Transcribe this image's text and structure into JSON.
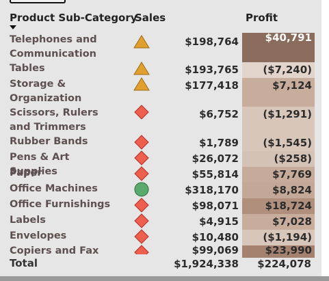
{
  "headers": {
    "category": "Product Sub-Category",
    "sales": "Sales",
    "profit": "Profit"
  },
  "rows": [
    {
      "category": "Telephones and Communication",
      "sales": "$198,764",
      "profit": "$40,791",
      "icon": "triangle-icon",
      "profit_color": "#8b6b5b"
    },
    {
      "category": "Tables",
      "sales": "$193,765",
      "profit": "($7,240)",
      "icon": "triangle-icon",
      "profit_color": "#e3d4cb"
    },
    {
      "category": "Storage & Organization",
      "sales": "$177,418",
      "profit": "$7,124",
      "icon": "triangle-icon",
      "profit_color": "#c8ad9d"
    },
    {
      "category": "Scissors, Rulers and Trimmers",
      "sales": "$6,752",
      "profit": "($1,291)",
      "icon": "diamond-icon",
      "profit_color": "#d8c6bb"
    },
    {
      "category": "Rubber Bands",
      "sales": "$1,789",
      "profit": "($1,545)",
      "icon": "diamond-icon",
      "profit_color": "#d8c6bb"
    },
    {
      "category": "Pens & Art Supplies",
      "sales": "$26,072",
      "profit": "($258)",
      "icon": "diamond-icon",
      "profit_color": "#d5c2b6"
    },
    {
      "category": "Paper",
      "sales": "$55,814",
      "profit": "$7,769",
      "icon": "diamond-icon",
      "profit_color": "#c6ab9a"
    },
    {
      "category": "Office Machines",
      "sales": "$318,170",
      "profit": "$8,824",
      "icon": "circle-icon",
      "profit_color": "#c3a797"
    },
    {
      "category": "Office Furnishings",
      "sales": "$98,071",
      "profit": "$18,724",
      "icon": "diamond-icon",
      "profit_color": "#b08f7d"
    },
    {
      "category": "Labels",
      "sales": "$4,915",
      "profit": "$7,028",
      "icon": "diamond-icon",
      "profit_color": "#c8ad9d"
    },
    {
      "category": "Envelopes",
      "sales": "$10,480",
      "profit": "($1,194)",
      "icon": "diamond-icon",
      "profit_color": "#d8c6bb"
    },
    {
      "category": "Copiers and Fax",
      "sales": "$99,069",
      "profit": "$23,990",
      "icon": "diamond-icon",
      "profit_color": "#a58270"
    }
  ],
  "total": {
    "label": "Total",
    "sales": "$1,924,338",
    "profit": "$224,078"
  },
  "colors": {
    "triangle": "#e0a030",
    "diamond": "#ee5f4f",
    "circle": "#5aaa6e",
    "dark_text": "#2b2b2b",
    "light_text": "#ffffff"
  }
}
